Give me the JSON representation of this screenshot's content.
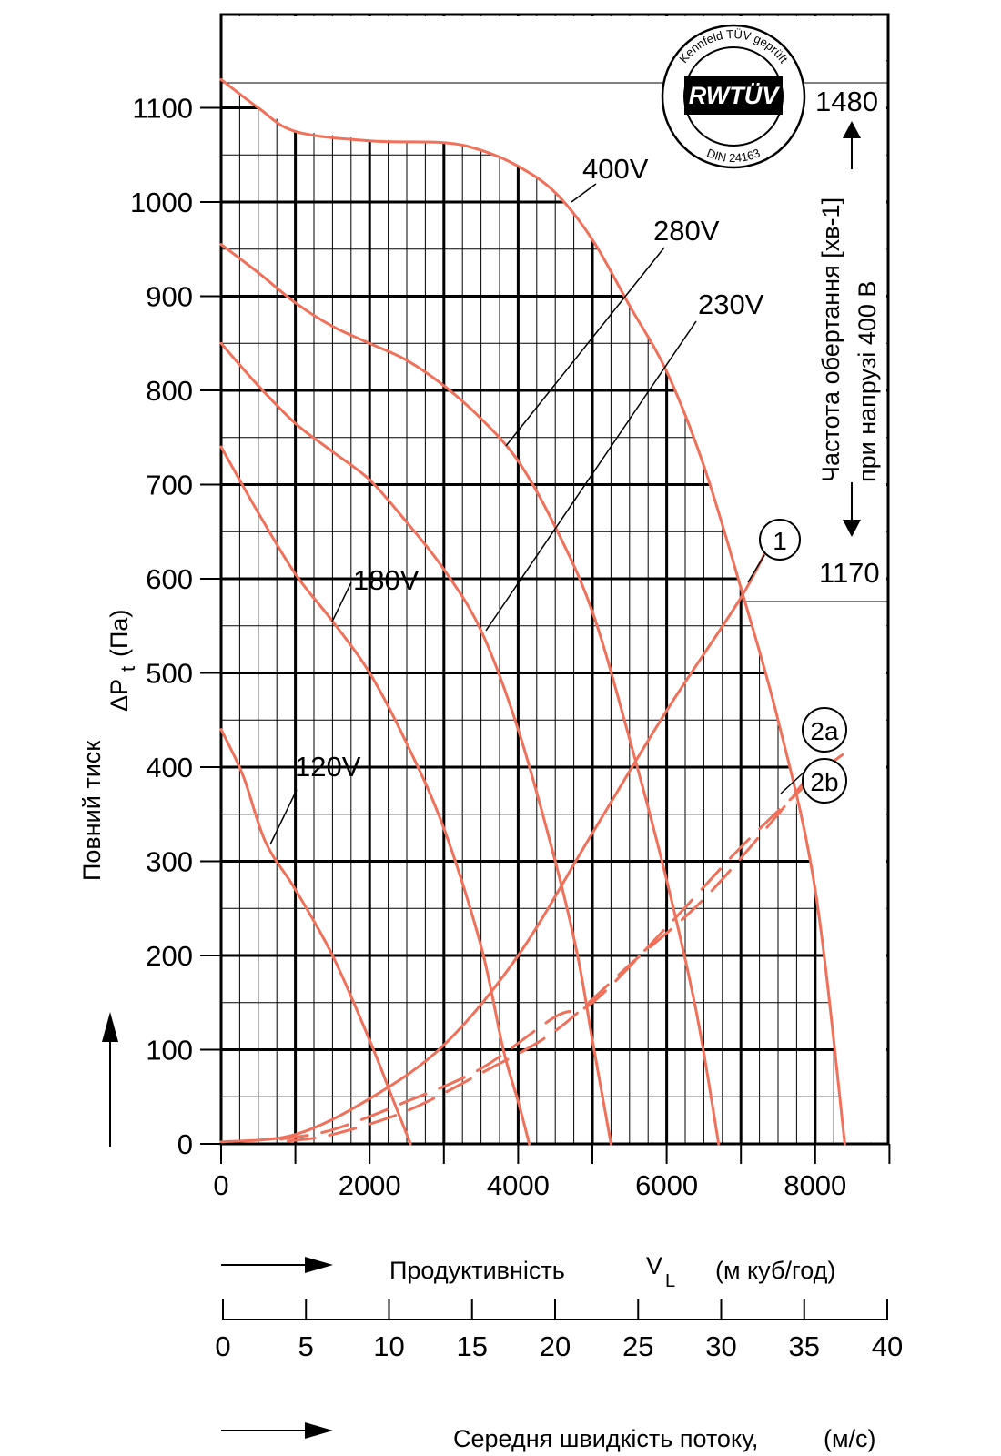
{
  "chart_data": {
    "type": "line",
    "title": "",
    "xlabel": "Продуктивність",
    "xsymbol": "V",
    "xsymbol_sub": "L",
    "xunit": "(м куб/год)",
    "ylabel": "Повний тиск",
    "ysymbol": "ΔP",
    "ysymbol_sub": "t",
    "yunit": "(Па)",
    "xlim": [
      0,
      9000
    ],
    "ylim": [
      0,
      1200
    ],
    "x_ticks": [
      "0",
      "2000",
      "4000",
      "6000",
      "8000"
    ],
    "y_ticks": [
      "0",
      "100",
      "200",
      "300",
      "400",
      "500",
      "600",
      "700",
      "800",
      "900",
      "1000",
      "1100"
    ],
    "grid": true,
    "series": [
      {
        "name": "400V",
        "style": "solid",
        "points": [
          [
            0,
            1130
          ],
          [
            500,
            1100
          ],
          [
            1000,
            1075
          ],
          [
            2000,
            1065
          ],
          [
            3000,
            1063
          ],
          [
            3500,
            1055
          ],
          [
            4000,
            1038
          ],
          [
            4500,
            1010
          ],
          [
            5000,
            960
          ],
          [
            5500,
            890
          ],
          [
            6000,
            820
          ],
          [
            6500,
            720
          ],
          [
            7000,
            590
          ],
          [
            7500,
            450
          ],
          [
            8000,
            270
          ],
          [
            8400,
            0
          ]
        ]
      },
      {
        "name": "280V",
        "style": "solid",
        "points": [
          [
            0,
            955
          ],
          [
            500,
            925
          ],
          [
            1000,
            893
          ],
          [
            1500,
            868
          ],
          [
            2000,
            850
          ],
          [
            2500,
            832
          ],
          [
            3000,
            805
          ],
          [
            3500,
            770
          ],
          [
            4000,
            725
          ],
          [
            4500,
            655
          ],
          [
            5000,
            565
          ],
          [
            5500,
            430
          ],
          [
            6000,
            280
          ],
          [
            6400,
            140
          ],
          [
            6700,
            0
          ]
        ]
      },
      {
        "name": "230V",
        "style": "solid",
        "points": [
          [
            0,
            850
          ],
          [
            500,
            805
          ],
          [
            1000,
            765
          ],
          [
            1500,
            735
          ],
          [
            2000,
            705
          ],
          [
            2500,
            660
          ],
          [
            3000,
            610
          ],
          [
            3500,
            545
          ],
          [
            4000,
            440
          ],
          [
            4500,
            300
          ],
          [
            4800,
            200
          ],
          [
            5000,
            110
          ],
          [
            5250,
            0
          ]
        ]
      },
      {
        "name": "180V",
        "style": "solid",
        "points": [
          [
            0,
            740
          ],
          [
            500,
            670
          ],
          [
            1000,
            605
          ],
          [
            1500,
            555
          ],
          [
            2000,
            500
          ],
          [
            2500,
            425
          ],
          [
            3000,
            335
          ],
          [
            3500,
            210
          ],
          [
            3800,
            100
          ],
          [
            4000,
            45
          ],
          [
            4150,
            0
          ]
        ]
      },
      {
        "name": "120V",
        "style": "solid",
        "points": [
          [
            0,
            440
          ],
          [
            300,
            390
          ],
          [
            600,
            320
          ],
          [
            1000,
            270
          ],
          [
            1500,
            200
          ],
          [
            2000,
            110
          ],
          [
            2300,
            50
          ],
          [
            2550,
            0
          ]
        ]
      },
      {
        "name": "1",
        "style": "solid",
        "points": [
          [
            0,
            2
          ],
          [
            1000,
            10
          ],
          [
            2000,
            48
          ],
          [
            3000,
            105
          ],
          [
            4000,
            200
          ],
          [
            5000,
            330
          ],
          [
            6000,
            460
          ],
          [
            7000,
            580
          ],
          [
            7400,
            640
          ]
        ]
      },
      {
        "name": "2a",
        "style": "dashed",
        "points": [
          [
            800,
            5
          ],
          [
            1500,
            15
          ],
          [
            2500,
            45
          ],
          [
            3500,
            80
          ],
          [
            4500,
            135
          ],
          [
            5000,
            150
          ],
          [
            6000,
            230
          ],
          [
            7000,
            315
          ],
          [
            8000,
            390
          ],
          [
            8400,
            415
          ]
        ]
      },
      {
        "name": "2b",
        "style": "dashed",
        "points": [
          [
            900,
            3
          ],
          [
            1500,
            10
          ],
          [
            2500,
            35
          ],
          [
            3500,
            75
          ],
          [
            4500,
            120
          ],
          [
            5500,
            190
          ],
          [
            6500,
            260
          ],
          [
            7500,
            350
          ],
          [
            8000,
            400
          ]
        ]
      }
    ],
    "speed_axis": {
      "label": "Середня швидкість потоку,",
      "unit": "(м/с)",
      "ticks": [
        "0",
        "5",
        "10",
        "15",
        "20",
        "25",
        "30",
        "35",
        "40"
      ]
    },
    "right_scale": {
      "label_line1": "Частота  обертання [хв-1]",
      "label_line2": "при напрузі 400 В",
      "top_value": "1480",
      "bottom_value": "1170"
    },
    "curve_labels": [
      "400V",
      "280V",
      "230V",
      "180V",
      "120V"
    ],
    "markers": [
      "1",
      "2a",
      "2b"
    ],
    "colors": {
      "curve": "#f0705a",
      "grid": "#000000",
      "axis": "#000000"
    }
  },
  "badge": {
    "top_text": "Kennfeld TÜV geprüft",
    "brand": "RWTÜV",
    "bottom_text": "DIN 24163"
  }
}
